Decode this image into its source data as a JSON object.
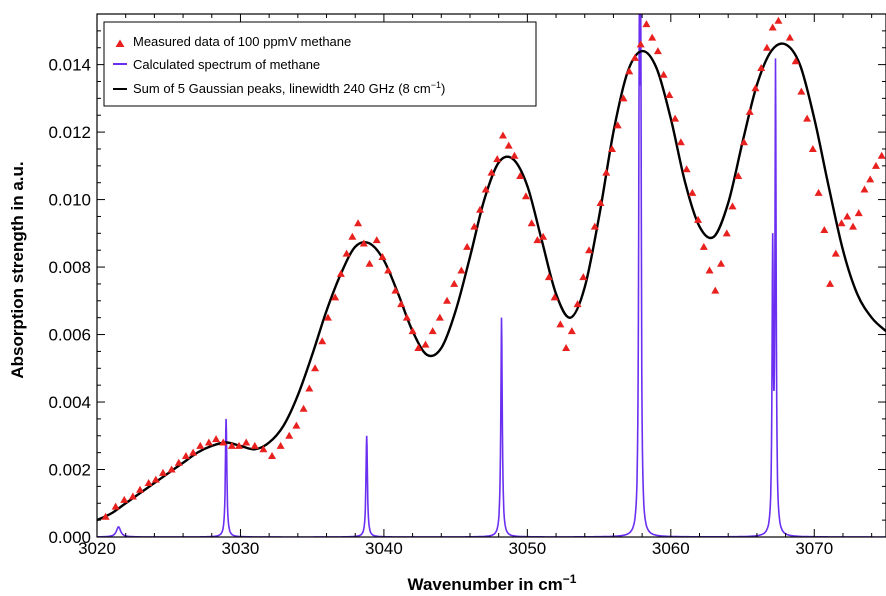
{
  "chart_data": {
    "type": "line",
    "title": "",
    "xlabel": "Wavenumber in cm",
    "xlabel_sup": "−1",
    "ylabel": "Absorption strength in a.u.",
    "xlim": [
      3020,
      3075
    ],
    "ylim": [
      0,
      0.0155
    ],
    "xticks": [
      3020,
      3030,
      3040,
      3050,
      3060,
      3070
    ],
    "xtick_labels": [
      "3020",
      "3030",
      "3040",
      "3050",
      "3060",
      "3070"
    ],
    "yticks": [
      0,
      0.002,
      0.004,
      0.006,
      0.008,
      0.01,
      0.012,
      0.014
    ],
    "ytick_labels": [
      "0.000",
      "0.002",
      "0.004",
      "0.006",
      "0.008",
      "0.010",
      "0.012",
      "0.014"
    ],
    "grid": false,
    "legend_position": "top-left",
    "legend": [
      {
        "label": "Measured data of 100 ppmV methane",
        "marker": "triangle",
        "color": "#e8201e"
      },
      {
        "label": "Calculated spectrum of methane",
        "marker": "line",
        "color": "#6a2ff0"
      },
      {
        "label": "Sum of 5 Gaussian peaks, linewidth 240 GHz (8 cm",
        "label_sup": "−1",
        "label_end": ")",
        "marker": "line",
        "color": "#000000"
      }
    ],
    "series": [
      {
        "name": "Measured data of 100 ppmV methane",
        "kind": "scatter",
        "color": "#e8201e",
        "x": [
          3020.6,
          3021.3,
          3021.9,
          3022.5,
          3023.0,
          3023.6,
          3024.1,
          3024.6,
          3025.2,
          3025.7,
          3026.2,
          3026.7,
          3027.2,
          3027.8,
          3028.3,
          3028.8,
          3029.4,
          3029.9,
          3030.4,
          3031.0,
          3031.6,
          3032.2,
          3032.8,
          3033.4,
          3033.9,
          3034.4,
          3034.8,
          3035.2,
          3035.7,
          3036.1,
          3036.6,
          3037.0,
          3037.4,
          3037.8,
          3038.2,
          3038.6,
          3039.0,
          3039.5,
          3039.9,
          3040.3,
          3040.8,
          3041.2,
          3041.6,
          3042.0,
          3042.4,
          3042.9,
          3043.4,
          3043.9,
          3044.4,
          3044.9,
          3045.4,
          3045.8,
          3046.3,
          3046.7,
          3047.1,
          3047.5,
          3047.9,
          3048.3,
          3048.7,
          3049.1,
          3049.5,
          3049.9,
          3050.3,
          3050.7,
          3051.1,
          3051.5,
          3051.9,
          3052.3,
          3052.7,
          3053.1,
          3053.5,
          3053.9,
          3054.3,
          3054.7,
          3055.1,
          3055.5,
          3055.9,
          3056.3,
          3056.7,
          3057.1,
          3057.5,
          3057.9,
          3058.3,
          3058.7,
          3059.1,
          3059.5,
          3059.9,
          3060.3,
          3060.7,
          3061.1,
          3061.5,
          3061.9,
          3062.3,
          3062.7,
          3063.1,
          3063.5,
          3063.9,
          3064.3,
          3064.7,
          3065.1,
          3065.5,
          3065.9,
          3066.3,
          3066.7,
          3067.1,
          3067.5,
          3067.9,
          3068.3,
          3068.7,
          3069.1,
          3069.5,
          3069.9,
          3070.3,
          3070.7,
          3071.1,
          3071.5,
          3071.9,
          3072.3,
          3072.7,
          3073.1,
          3073.5,
          3073.9,
          3074.3,
          3074.7
        ],
        "y": [
          0.0006,
          0.0009,
          0.0011,
          0.0012,
          0.0014,
          0.0016,
          0.0017,
          0.0019,
          0.002,
          0.0022,
          0.0024,
          0.0025,
          0.0027,
          0.0028,
          0.0029,
          0.0028,
          0.0027,
          0.0027,
          0.0028,
          0.0027,
          0.0026,
          0.0024,
          0.0027,
          0.003,
          0.0033,
          0.0038,
          0.0044,
          0.005,
          0.0058,
          0.0065,
          0.0071,
          0.0078,
          0.0084,
          0.0089,
          0.0093,
          0.0087,
          0.0081,
          0.0088,
          0.0083,
          0.0079,
          0.0073,
          0.0069,
          0.0065,
          0.0061,
          0.0056,
          0.0057,
          0.0061,
          0.0065,
          0.007,
          0.0075,
          0.0079,
          0.0086,
          0.0092,
          0.0097,
          0.0103,
          0.0108,
          0.0112,
          0.0119,
          0.0116,
          0.0113,
          0.0107,
          0.0101,
          0.0093,
          0.0088,
          0.0089,
          0.0077,
          0.0071,
          0.0063,
          0.0056,
          0.0061,
          0.0069,
          0.0077,
          0.0085,
          0.0092,
          0.0099,
          0.0108,
          0.0115,
          0.0122,
          0.013,
          0.0138,
          0.0142,
          0.0146,
          0.0152,
          0.0148,
          0.0144,
          0.0137,
          0.0131,
          0.0124,
          0.0117,
          0.0109,
          0.0102,
          0.0094,
          0.0086,
          0.0079,
          0.0073,
          0.0081,
          0.009,
          0.0098,
          0.0107,
          0.0117,
          0.0126,
          0.0133,
          0.0139,
          0.0145,
          0.0151,
          0.0153,
          0.0156,
          0.0148,
          0.0141,
          0.0132,
          0.0124,
          0.0115,
          0.0102,
          0.0091,
          0.0075,
          0.0084,
          0.0093,
          0.0095,
          0.0092,
          0.0096,
          0.0103,
          0.0106,
          0.011,
          0.0113
        ]
      },
      {
        "name": "Calculated spectrum of methane",
        "kind": "line",
        "color": "#6a2ff0",
        "peaks": [
          {
            "x": 3021.5,
            "height": 0.0003,
            "width": 0.35
          },
          {
            "x": 3029.0,
            "height": 0.0035,
            "width": 0.12
          },
          {
            "x": 3038.8,
            "height": 0.003,
            "width": 0.12
          },
          {
            "x": 3048.2,
            "height": 0.0065,
            "width": 0.12
          },
          {
            "x": 3057.9,
            "height": 0.0136,
            "width": 0.1
          },
          {
            "x": 3057.8,
            "height": 0.0128,
            "width": 0.1
          },
          {
            "x": 3067.3,
            "height": 0.0137,
            "width": 0.1
          },
          {
            "x": 3067.1,
            "height": 0.0082,
            "width": 0.1
          }
        ]
      },
      {
        "name": "Sum of 5 Gaussian peaks, linewidth 240 GHz (8 cm⁻¹)",
        "kind": "line",
        "color": "#000000",
        "x": [
          3020,
          3021,
          3022,
          3023,
          3024,
          3025,
          3026,
          3027,
          3028,
          3029,
          3030,
          3031,
          3032,
          3033,
          3034,
          3035,
          3036,
          3037,
          3038,
          3039,
          3040,
          3041,
          3042,
          3043,
          3044,
          3045,
          3046,
          3047,
          3048,
          3049,
          3050,
          3051,
          3052,
          3053,
          3054,
          3055,
          3056,
          3057,
          3058,
          3059,
          3060,
          3061,
          3062,
          3063,
          3064,
          3065,
          3066,
          3067,
          3068,
          3069,
          3070,
          3071,
          3072,
          3073,
          3074,
          3075
        ],
        "y": [
          0.0005,
          0.0007,
          0.001,
          0.0013,
          0.0016,
          0.0019,
          0.0022,
          0.0025,
          0.0027,
          0.0028,
          0.0027,
          0.0026,
          0.0028,
          0.0033,
          0.0042,
          0.0054,
          0.0067,
          0.0078,
          0.0086,
          0.0087,
          0.0082,
          0.0072,
          0.0061,
          0.0054,
          0.0056,
          0.0067,
          0.0083,
          0.01,
          0.0111,
          0.0112,
          0.0104,
          0.0088,
          0.0072,
          0.0065,
          0.0074,
          0.0095,
          0.012,
          0.0138,
          0.0144,
          0.0139,
          0.0124,
          0.0105,
          0.0092,
          0.0089,
          0.0099,
          0.0117,
          0.0134,
          0.0144,
          0.0146,
          0.014,
          0.0124,
          0.0104,
          0.0085,
          0.0072,
          0.0065,
          0.0061
        ]
      }
    ]
  }
}
